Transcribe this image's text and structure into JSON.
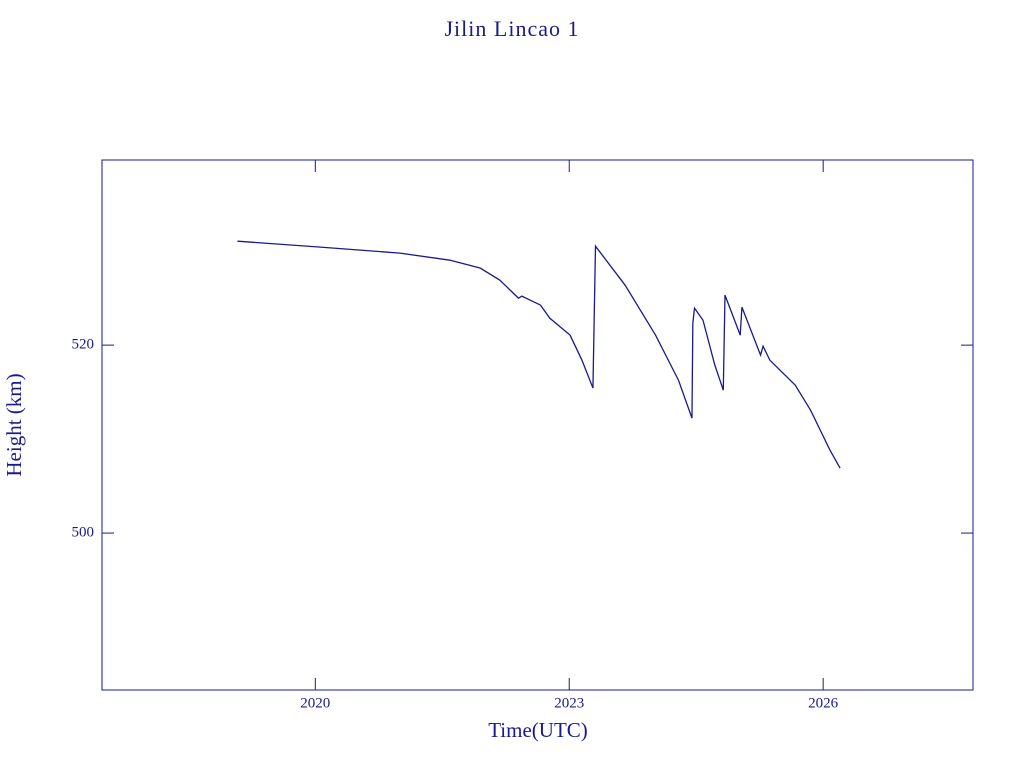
{
  "chart_data": {
    "type": "line",
    "title": "Jilin Lincao 1",
    "xlabel": "Time(UTC)",
    "ylabel": "Height (km)",
    "x": [
      2019.08,
      2020.06,
      2021.0,
      2021.59,
      2021.95,
      2022.18,
      2022.4,
      2022.44,
      2022.66,
      2022.77,
      2023.01,
      2023.15,
      2023.28,
      2023.31,
      2023.66,
      2024.02,
      2024.29,
      2024.45,
      2024.46,
      2024.48,
      2024.58,
      2024.72,
      2024.82,
      2024.84,
      2025.02,
      2025.04,
      2025.26,
      2025.29,
      2025.37,
      2025.67,
      2025.85,
      2026.08,
      2026.2
    ],
    "series": [
      {
        "name": "Height",
        "color": "#1a1a8c",
        "values": [
          531.06,
          530.43,
          529.79,
          529.04,
          528.19,
          526.91,
          525.0,
          525.21,
          524.26,
          522.87,
          521.06,
          518.4,
          515.43,
          530.53,
          526.38,
          521.06,
          516.28,
          512.23,
          522.34,
          523.94,
          522.66,
          517.87,
          515.21,
          525.32,
          521.06,
          524.04,
          518.94,
          519.89,
          518.4,
          515.74,
          513.09,
          508.83,
          506.91
        ]
      }
    ],
    "xlim": [
      2017.48,
      2027.77
    ],
    "xticks": [
      2020,
      2023,
      2026
    ],
    "ylim": [
      483.3,
      539.7
    ],
    "yticks": [
      500,
      520
    ]
  }
}
